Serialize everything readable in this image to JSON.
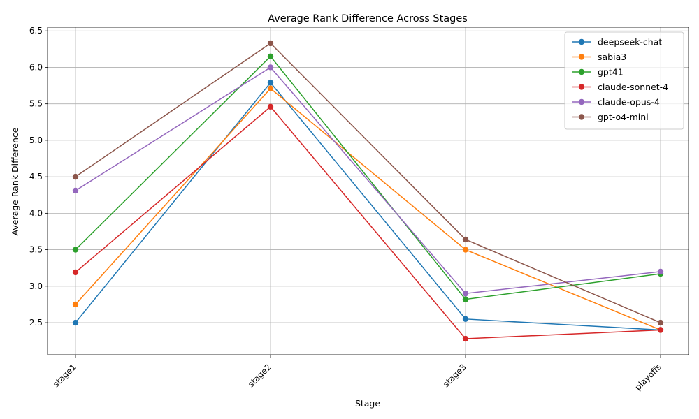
{
  "chart_data": {
    "type": "line",
    "title": "Average Rank Difference Across Stages",
    "xlabel": "Stage",
    "ylabel": "Average Rank Difference",
    "categories": [
      "stage1",
      "stage2",
      "stage3",
      "playoffs"
    ],
    "yticks": [
      "2.5",
      "3.0",
      "3.5",
      "4.0",
      "4.5",
      "5.0",
      "5.5",
      "6.0",
      "6.5"
    ],
    "ylim": [
      2.06,
      6.55
    ],
    "grid": true,
    "legend_position": "top-right",
    "series": [
      {
        "name": "deepseek-chat",
        "color": "#1f77b4",
        "values": [
          2.5,
          5.79,
          2.55,
          2.4
        ]
      },
      {
        "name": "sabia3",
        "color": "#ff7f0e",
        "values": [
          2.75,
          5.71,
          3.5,
          2.4
        ]
      },
      {
        "name": "gpt41",
        "color": "#2ca02c",
        "values": [
          3.5,
          6.15,
          2.82,
          3.17
        ]
      },
      {
        "name": "claude-sonnet-4",
        "color": "#d62728",
        "values": [
          3.19,
          5.46,
          2.28,
          2.4
        ]
      },
      {
        "name": "claude-opus-4",
        "color": "#9467bd",
        "values": [
          4.31,
          6.0,
          2.9,
          3.2
        ]
      },
      {
        "name": "gpt-o4-mini",
        "color": "#8c564b",
        "values": [
          4.5,
          6.33,
          3.64,
          2.5
        ]
      }
    ]
  }
}
